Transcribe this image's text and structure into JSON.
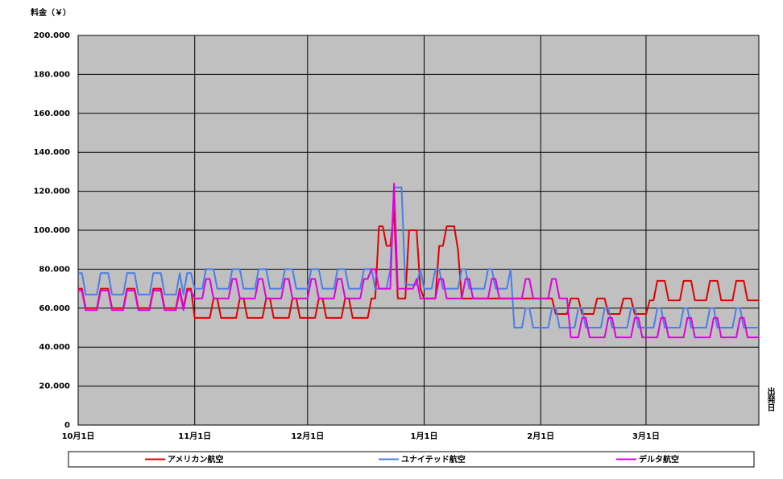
{
  "chart_data": {
    "type": "line",
    "y_axis_label": "料金（￥）",
    "x_axis_label": "出発日",
    "ylim": [
      0,
      200000
    ],
    "yticks": [
      0,
      {
        "value": 20000,
        "label": "20.000"
      },
      {
        "value": 40000,
        "label": "40.000"
      },
      {
        "value": 60000,
        "label": "60.000"
      },
      {
        "value": 80000,
        "label": "80.000"
      },
      {
        "value": 100000,
        "label": "100.000"
      },
      {
        "value": 120000,
        "label": "120.000"
      },
      {
        "value": 140000,
        "label": "140.000"
      },
      {
        "value": 160000,
        "label": "160.000"
      },
      {
        "value": 180000,
        "label": "180.000"
      },
      {
        "value": 200000,
        "label": "200.000"
      }
    ],
    "grid": true,
    "legend": "bottom",
    "categories": [
      "10月1日",
      null,
      null,
      null,
      null,
      null,
      null,
      null,
      null,
      null,
      null,
      null,
      null,
      null,
      null,
      null,
      null,
      null,
      null,
      null,
      null,
      null,
      null,
      null,
      null,
      null,
      null,
      null,
      null,
      null,
      null,
      "11月1日",
      null,
      null,
      null,
      null,
      null,
      null,
      null,
      null,
      null,
      null,
      null,
      null,
      null,
      null,
      null,
      null,
      null,
      null,
      null,
      null,
      null,
      null,
      null,
      null,
      null,
      null,
      null,
      null,
      null,
      "12月1日",
      null,
      null,
      null,
      null,
      null,
      null,
      null,
      null,
      null,
      null,
      null,
      null,
      null,
      null,
      null,
      null,
      null,
      null,
      null,
      null,
      null,
      null,
      null,
      null,
      null,
      null,
      null,
      null,
      null,
      null,
      "1月1日",
      null,
      null,
      null,
      null,
      null,
      null,
      null,
      null,
      null,
      null,
      null,
      null,
      null,
      null,
      null,
      null,
      null,
      null,
      null,
      null,
      null,
      null,
      null,
      null,
      null,
      null,
      null,
      null,
      null,
      null,
      "2月1日",
      null,
      null,
      null,
      null,
      null,
      null,
      null,
      null,
      null,
      null,
      null,
      null,
      null,
      null,
      null,
      null,
      null,
      null,
      null,
      null,
      null,
      null,
      null,
      null,
      null,
      null,
      null,
      "3月1日",
      null,
      null,
      null,
      null,
      null,
      null,
      null,
      null,
      null,
      null,
      null,
      null,
      null,
      null,
      null,
      null,
      null,
      null,
      null,
      null,
      null,
      null,
      null,
      null,
      null,
      null,
      null,
      null,
      null,
      null
    ],
    "series": [
      {
        "name": "アメリカン航空",
        "color": "#e00000",
        "values": [
          70000,
          70000,
          60000,
          60000,
          60000,
          60000,
          70000,
          70000,
          70000,
          60000,
          60000,
          60000,
          60000,
          70000,
          70000,
          70000,
          60000,
          60000,
          60000,
          60000,
          70000,
          70000,
          70000,
          60000,
          60000,
          60000,
          60000,
          70000,
          60000,
          70000,
          70000,
          55000,
          55000,
          55000,
          55000,
          55000,
          65000,
          65000,
          55000,
          55000,
          55000,
          55000,
          55000,
          65000,
          65000,
          55000,
          55000,
          55000,
          55000,
          55000,
          65000,
          65000,
          55000,
          55000,
          55000,
          55000,
          55000,
          65000,
          65000,
          55000,
          55000,
          55000,
          55000,
          55000,
          65000,
          65000,
          55000,
          55000,
          55000,
          55000,
          55000,
          65000,
          65000,
          55000,
          55000,
          55000,
          55000,
          55000,
          65000,
          65000,
          102000,
          102000,
          92000,
          92000,
          110000,
          65000,
          65000,
          65000,
          100000,
          100000,
          100000,
          70000,
          65000,
          65000,
          65000,
          65000,
          92000,
          92000,
          102000,
          102000,
          102000,
          90000,
          65000,
          65000,
          65000,
          65000,
          65000,
          65000,
          65000,
          65000,
          65000,
          65000,
          65000,
          65000,
          65000,
          65000,
          65000,
          65000,
          65000,
          65000,
          65000,
          65000,
          65000,
          65000,
          65000,
          65000,
          65000,
          57000,
          57000,
          57000,
          57000,
          65000,
          65000,
          65000,
          57000,
          57000,
          57000,
          57000,
          65000,
          65000,
          65000,
          57000,
          57000,
          57000,
          57000,
          65000,
          65000,
          65000,
          57000,
          57000,
          57000,
          57000,
          64000,
          64000,
          74000,
          74000,
          74000,
          64000,
          64000,
          64000,
          64000,
          74000,
          74000,
          74000,
          64000,
          64000,
          64000,
          64000,
          74000,
          74000,
          74000,
          64000,
          64000,
          64000,
          64000,
          74000,
          74000,
          74000,
          64000,
          64000,
          64000,
          64000
        ]
      },
      {
        "name": "ユナイテッド航空",
        "color": "#4a7ee8",
        "values": [
          78000,
          78000,
          67000,
          67000,
          67000,
          67000,
          78000,
          78000,
          78000,
          67000,
          67000,
          67000,
          67000,
          78000,
          78000,
          78000,
          67000,
          67000,
          67000,
          67000,
          78000,
          78000,
          78000,
          67000,
          67000,
          67000,
          67000,
          78000,
          67000,
          78000,
          78000,
          70000,
          70000,
          70000,
          80000,
          80000,
          80000,
          70000,
          70000,
          70000,
          70000,
          80000,
          80000,
          80000,
          70000,
          70000,
          70000,
          70000,
          80000,
          80000,
          80000,
          70000,
          70000,
          70000,
          70000,
          80000,
          80000,
          80000,
          70000,
          70000,
          70000,
          70000,
          80000,
          80000,
          80000,
          70000,
          70000,
          70000,
          70000,
          80000,
          80000,
          80000,
          70000,
          70000,
          70000,
          70000,
          80000,
          80000,
          80000,
          70000,
          70000,
          70000,
          70000,
          80000,
          122000,
          122000,
          122000,
          72000,
          72000,
          72000,
          72000,
          80000,
          70000,
          70000,
          70000,
          80000,
          80000,
          70000,
          70000,
          70000,
          70000,
          70000,
          80000,
          80000,
          70000,
          70000,
          70000,
          70000,
          70000,
          80000,
          80000,
          70000,
          70000,
          70000,
          70000,
          80000,
          50000,
          50000,
          50000,
          60000,
          60000,
          50000,
          50000,
          50000,
          50000,
          50000,
          60000,
          60000,
          50000,
          50000,
          50000,
          50000,
          50000,
          60000,
          60000,
          50000,
          50000,
          50000,
          50000,
          50000,
          60000,
          60000,
          50000,
          50000,
          50000,
          50000,
          50000,
          60000,
          60000,
          50000,
          50000,
          50000,
          50000,
          50000,
          60000,
          60000,
          50000,
          50000,
          50000,
          50000,
          50000,
          60000,
          60000,
          50000,
          50000,
          50000,
          50000,
          50000,
          60000,
          60000,
          50000,
          50000,
          50000,
          50000,
          50000,
          60000,
          60000,
          50000,
          50000,
          50000,
          50000,
          50000
        ]
      },
      {
        "name": "デルタ航空",
        "color": "#e000e0",
        "values": [
          69000,
          69000,
          59000,
          59000,
          59000,
          59000,
          69000,
          69000,
          69000,
          59000,
          59000,
          59000,
          59000,
          69000,
          69000,
          69000,
          59000,
          59000,
          59000,
          59000,
          69000,
          69000,
          69000,
          59000,
          59000,
          59000,
          59000,
          69000,
          59000,
          69000,
          69000,
          65000,
          65000,
          65000,
          75000,
          75000,
          65000,
          65000,
          65000,
          65000,
          65000,
          75000,
          75000,
          65000,
          65000,
          65000,
          65000,
          65000,
          75000,
          75000,
          65000,
          65000,
          65000,
          65000,
          65000,
          75000,
          75000,
          65000,
          65000,
          65000,
          65000,
          65000,
          75000,
          75000,
          65000,
          65000,
          65000,
          65000,
          65000,
          75000,
          75000,
          65000,
          65000,
          65000,
          65000,
          65000,
          75000,
          75000,
          80000,
          80000,
          70000,
          70000,
          70000,
          70000,
          124000,
          70000,
          70000,
          70000,
          70000,
          70000,
          75000,
          65000,
          65000,
          65000,
          65000,
          65000,
          75000,
          75000,
          65000,
          65000,
          65000,
          65000,
          65000,
          75000,
          75000,
          65000,
          65000,
          65000,
          65000,
          65000,
          75000,
          75000,
          65000,
          65000,
          65000,
          65000,
          65000,
          65000,
          65000,
          75000,
          75000,
          65000,
          65000,
          65000,
          65000,
          65000,
          75000,
          75000,
          65000,
          65000,
          65000,
          45000,
          45000,
          45000,
          55000,
          55000,
          45000,
          45000,
          45000,
          45000,
          45000,
          55000,
          55000,
          45000,
          45000,
          45000,
          45000,
          45000,
          55000,
          55000,
          45000,
          45000,
          45000,
          45000,
          45000,
          55000,
          55000,
          45000,
          45000,
          45000,
          45000,
          45000,
          55000,
          55000,
          45000,
          45000,
          45000,
          45000,
          45000,
          55000,
          55000,
          45000,
          45000,
          45000,
          45000,
          45000,
          55000,
          55000,
          45000,
          45000,
          45000,
          45000
        ]
      }
    ]
  }
}
